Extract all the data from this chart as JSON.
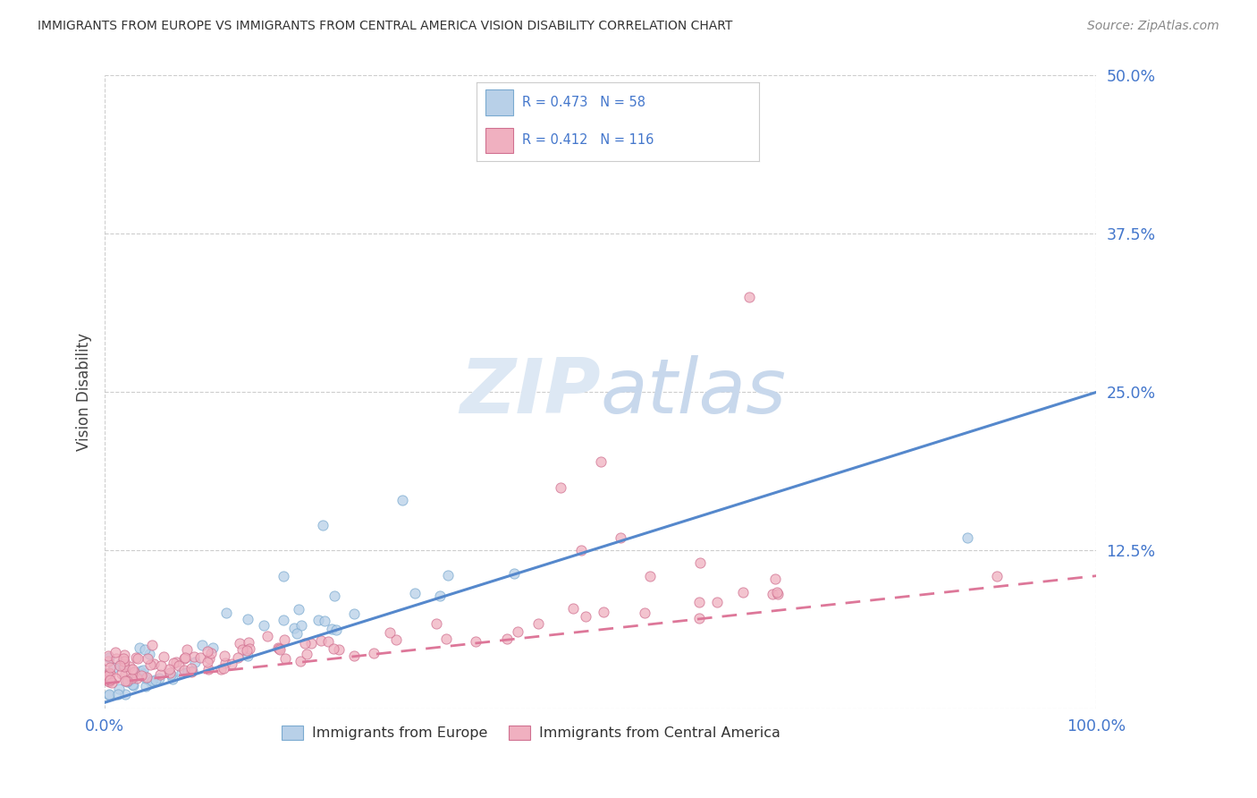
{
  "title": "IMMIGRANTS FROM EUROPE VS IMMIGRANTS FROM CENTRAL AMERICA VISION DISABILITY CORRELATION CHART",
  "source": "Source: ZipAtlas.com",
  "ylabel": "Vision Disability",
  "xlim": [
    0.0,
    1.0
  ],
  "ylim": [
    0.0,
    0.5
  ],
  "yticks": [
    0.0,
    0.125,
    0.25,
    0.375,
    0.5
  ],
  "ytick_labels": [
    "",
    "12.5%",
    "25.0%",
    "37.5%",
    "50.0%"
  ],
  "xtick_left_label": "0.0%",
  "xtick_right_label": "100.0%",
  "grid_color": "#c8c8c8",
  "background_color": "#ffffff",
  "europe_color": "#b8d0e8",
  "europe_edge_color": "#7aaad0",
  "central_america_color": "#f0b0c0",
  "central_america_edge_color": "#d07090",
  "europe_line_color": "#5588cc",
  "central_america_line_color": "#dd7799",
  "europe_R": 0.473,
  "europe_N": 58,
  "central_america_R": 0.412,
  "central_america_N": 116,
  "tick_label_color": "#4477cc",
  "ylabel_color": "#444444",
  "title_color": "#333333",
  "source_color": "#888888",
  "watermark_color": "#dde8f4",
  "legend_border_color": "#cccccc",
  "eu_line_intercept": 0.005,
  "eu_line_slope": 0.245,
  "ca_line_intercept": 0.02,
  "ca_line_slope": 0.085
}
